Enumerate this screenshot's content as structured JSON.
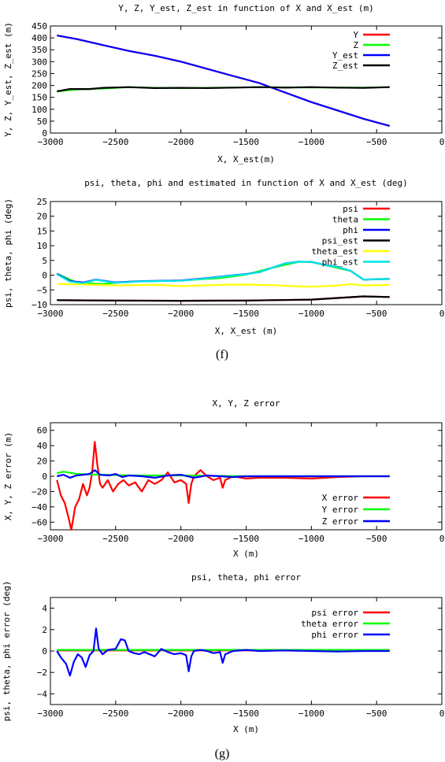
{
  "captions": [
    "(f)",
    "(g)"
  ],
  "chart_data": [
    {
      "type": "line",
      "title": "Y, Z, Y_est, Z_est in function of X and X_est (m)",
      "xlabel": "X, X_est(m)",
      "ylabel": "Y, Z, Y_est, Z_est (m)",
      "xlim": [
        -3000,
        0
      ],
      "ylim": [
        0,
        450
      ],
      "xticks": [
        -3000,
        -2500,
        -2000,
        -1500,
        -1000,
        -500,
        0
      ],
      "yticks": [
        0,
        50,
        100,
        150,
        200,
        250,
        300,
        350,
        400,
        450
      ],
      "grid": false,
      "legend": "top-right",
      "series": [
        {
          "name": "Y",
          "color": "#ff0000",
          "x": [
            -2950,
            -2800,
            -2600,
            -2400,
            -2200,
            -2000,
            -1800,
            -1600,
            -1400,
            -1200,
            -1000,
            -800,
            -600,
            -400
          ],
          "y": [
            410,
            395,
            370,
            345,
            325,
            300,
            270,
            240,
            210,
            170,
            130,
            95,
            60,
            30
          ]
        },
        {
          "name": "Z",
          "color": "#00ff00",
          "x": [
            -2950,
            -2800,
            -2600,
            -2400,
            -2200,
            -2000,
            -1800,
            -1600,
            -1400,
            -1200,
            -1000,
            -800,
            -600,
            -400
          ],
          "y": [
            175,
            183,
            187,
            193,
            190,
            189,
            190,
            191,
            193,
            192,
            192,
            191,
            191,
            193
          ]
        },
        {
          "name": "Y_est",
          "color": "#0000ff",
          "x": [
            -2950,
            -2800,
            -2600,
            -2400,
            -2200,
            -2000,
            -1800,
            -1600,
            -1400,
            -1200,
            -1000,
            -800,
            -600,
            -400
          ],
          "y": [
            410,
            395,
            370,
            345,
            325,
            300,
            270,
            240,
            210,
            170,
            130,
            95,
            60,
            30
          ]
        },
        {
          "name": "Z_est",
          "color": "#000000",
          "x": [
            -2950,
            -2850,
            -2700,
            -2600,
            -2400,
            -2200,
            -2000,
            -1800,
            -1600,
            -1400,
            -1200,
            -1000,
            -800,
            -600,
            -400
          ],
          "y": [
            175,
            185,
            185,
            190,
            193,
            189,
            190,
            189,
            191,
            193,
            191,
            193,
            191,
            190,
            193
          ]
        }
      ]
    },
    {
      "type": "line",
      "title": "psi, theta, phi and estimated in function of X and X_est (deg)",
      "xlabel": "X, X_est (m)",
      "ylabel": "psi, theta, phi (deg)",
      "xlim": [
        -3000,
        0
      ],
      "ylim": [
        -10,
        25
      ],
      "xticks": [
        -3000,
        -2500,
        -2000,
        -1500,
        -1000,
        -500,
        0
      ],
      "yticks": [
        -10,
        -5,
        0,
        5,
        10,
        15,
        20,
        25
      ],
      "grid": false,
      "legend": "top-right",
      "series": [
        {
          "name": "psi",
          "color": "#ff0000",
          "x": [
            -2950,
            -2500,
            -2000,
            -1500,
            -1000,
            -600,
            -400
          ],
          "y": [
            -8.5,
            -8.6,
            -8.7,
            -8.6,
            -8.3,
            -7.2,
            -7.4
          ]
        },
        {
          "name": "theta",
          "color": "#00ff00",
          "x": [
            -2950,
            -2800,
            -2600,
            -2400,
            -2000,
            -1700,
            -1500,
            -1300,
            -1100,
            -1000,
            -900,
            -700,
            -600,
            -400
          ],
          "y": [
            0.5,
            -2.5,
            -3,
            -2.2,
            -1.8,
            -1,
            0.2,
            2.5,
            4.5,
            4.5,
            3.5,
            1.5,
            -1.5,
            -1.2
          ]
        },
        {
          "name": "phi",
          "color": "#0000ff",
          "x": [
            -2950,
            -2850,
            -2750,
            -2650,
            -2500,
            -2300,
            -2000,
            -1800,
            -1600,
            -1500,
            -1400,
            -1300,
            -1200,
            -1100,
            -1000,
            -900,
            -800,
            -700,
            -600,
            -400
          ],
          "y": [
            0.5,
            -2,
            -2.5,
            -1.5,
            -2.5,
            -2,
            -1.8,
            -1,
            0,
            0.4,
            1,
            2.5,
            4,
            4.6,
            4.5,
            3.5,
            2.8,
            1.5,
            -1.5,
            -1.3
          ]
        },
        {
          "name": "psi_est",
          "color": "#000000",
          "x": [
            -2950,
            -2500,
            -2000,
            -1500,
            -1000,
            -600,
            -400
          ],
          "y": [
            -8.5,
            -8.6,
            -8.7,
            -8.6,
            -8.3,
            -7.2,
            -7.4
          ]
        },
        {
          "name": "theta_est",
          "color": "#ffff00",
          "x": [
            -2950,
            -2700,
            -2500,
            -2200,
            -2000,
            -1700,
            -1500,
            -1300,
            -1100,
            -1000,
            -800,
            -700,
            -600,
            -400
          ],
          "y": [
            -3,
            -3.2,
            -3.5,
            -3.3,
            -3.7,
            -3.3,
            -3.2,
            -3.4,
            -3.8,
            -3.9,
            -3.5,
            -3,
            -3.5,
            -3.3
          ]
        },
        {
          "name": "phi_est",
          "color": "#00e5e5",
          "x": [
            -2950,
            -2850,
            -2750,
            -2650,
            -2500,
            -2300,
            -2000,
            -1800,
            -1600,
            -1500,
            -1400,
            -1300,
            -1200,
            -1100,
            -1000,
            -900,
            -800,
            -700,
            -600,
            -400
          ],
          "y": [
            0.3,
            -2.2,
            -2.7,
            -1.6,
            -2.6,
            -2.1,
            -1.9,
            -1.1,
            -0.1,
            0.3,
            1,
            2.5,
            4,
            4.6,
            4.5,
            3.5,
            2.8,
            1.5,
            -1.5,
            -1.3
          ]
        }
      ]
    },
    {
      "type": "line",
      "title": "X, Y, Z error",
      "xlabel": "X (m)",
      "ylabel": "X, Y, Z error (m)",
      "xlim": [
        -3000,
        0
      ],
      "ylim": [
        -70,
        70
      ],
      "xticks": [
        -3000,
        -2500,
        -2000,
        -1500,
        -1000,
        -500,
        0
      ],
      "yticks": [
        -60,
        -40,
        -20,
        0,
        20,
        40,
        60
      ],
      "grid": false,
      "legend": "bottom-right",
      "series": [
        {
          "name": "X error",
          "color": "#ff0000",
          "x": [
            -2950,
            -2920,
            -2890,
            -2860,
            -2840,
            -2810,
            -2780,
            -2750,
            -2720,
            -2700,
            -2680,
            -2660,
            -2640,
            -2620,
            -2600,
            -2560,
            -2520,
            -2480,
            -2440,
            -2400,
            -2350,
            -2300,
            -2250,
            -2200,
            -2150,
            -2100,
            -2050,
            -2000,
            -1960,
            -1940,
            -1920,
            -1900,
            -1850,
            -1800,
            -1750,
            -1700,
            -1680,
            -1660,
            -1600,
            -1500,
            -1400,
            -1200,
            -1000,
            -800,
            -600,
            -400
          ],
          "y": [
            -5,
            -25,
            -35,
            -55,
            -70,
            -40,
            -30,
            -10,
            -25,
            -15,
            5,
            45,
            15,
            -10,
            -15,
            -5,
            -20,
            -10,
            -5,
            -12,
            -8,
            -20,
            -5,
            -10,
            -5,
            5,
            -8,
            -5,
            -10,
            -35,
            -10,
            0,
            8,
            0,
            -5,
            -2,
            -15,
            -5,
            0,
            -3,
            -2,
            -2,
            -3,
            -1,
            0,
            0
          ]
        },
        {
          "name": "Y error",
          "color": "#00ff00",
          "x": [
            -2950,
            -2900,
            -2800,
            -2600,
            -2400,
            -2000,
            -1500,
            -1000,
            -400
          ],
          "y": [
            4,
            6,
            3,
            2,
            1,
            1,
            0,
            0,
            0
          ]
        },
        {
          "name": "Z error",
          "color": "#0000ff",
          "x": [
            -2950,
            -2900,
            -2850,
            -2800,
            -2750,
            -2700,
            -2660,
            -2620,
            -2550,
            -2500,
            -2450,
            -2400,
            -2300,
            -2200,
            -2100,
            -2000,
            -1900,
            -1800,
            -1700,
            -1600,
            -1500,
            -1000,
            -400
          ],
          "y": [
            0,
            2,
            -2,
            1,
            2,
            3,
            8,
            2,
            1,
            3,
            -1,
            1,
            0,
            -2,
            1,
            2,
            -2,
            1,
            0,
            -1,
            0,
            0,
            0
          ]
        }
      ]
    },
    {
      "type": "line",
      "title": "psi, theta, phi error",
      "xlabel": "X (m)",
      "ylabel": "psi, theta, phi error (deg)",
      "xlim": [
        -3000,
        0
      ],
      "ylim": [
        -5,
        5
      ],
      "xticks": [
        -3000,
        -2500,
        -2000,
        -1500,
        -1000,
        -500,
        0
      ],
      "yticks": [
        -4,
        -2,
        0,
        2,
        4
      ],
      "grid": false,
      "legend": "top-right",
      "series": [
        {
          "name": "psi error",
          "color": "#ff0000",
          "x": [
            -2950,
            -2500,
            -2000,
            -1500,
            -1000,
            -400
          ],
          "y": [
            0.05,
            0.05,
            0.05,
            0.05,
            0.05,
            0.05
          ]
        },
        {
          "name": "theta error",
          "color": "#00ff00",
          "x": [
            -2950,
            -2500,
            -2000,
            -1500,
            -1000,
            -400
          ],
          "y": [
            0.1,
            0.1,
            0.1,
            0.1,
            0.1,
            0.1
          ]
        },
        {
          "name": "phi error",
          "color": "#0000ff",
          "x": [
            -2950,
            -2920,
            -2880,
            -2850,
            -2820,
            -2790,
            -2760,
            -2730,
            -2700,
            -2670,
            -2650,
            -2630,
            -2600,
            -2560,
            -2500,
            -2460,
            -2430,
            -2400,
            -2360,
            -2320,
            -2280,
            -2200,
            -2150,
            -2100,
            -2050,
            -2000,
            -1960,
            -1940,
            -1920,
            -1900,
            -1850,
            -1800,
            -1750,
            -1700,
            -1680,
            -1660,
            -1600,
            -1500,
            -1400,
            -1200,
            -1000,
            -800,
            -600,
            -400
          ],
          "y": [
            0,
            -0.6,
            -1.2,
            -2.3,
            -1,
            -0.3,
            -0.6,
            -1.5,
            -0.4,
            0,
            2.1,
            0.2,
            -0.3,
            0.1,
            0.2,
            1.1,
            1,
            0,
            -0.2,
            -0.3,
            -0.1,
            -0.5,
            0.2,
            -0.1,
            -0.3,
            -0.2,
            -0.4,
            -1.9,
            -0.5,
            0,
            0.1,
            0,
            -0.2,
            -0.1,
            -1.1,
            -0.3,
            0,
            0.1,
            0,
            0.05,
            0,
            -0.05,
            0,
            0
          ]
        }
      ]
    }
  ]
}
